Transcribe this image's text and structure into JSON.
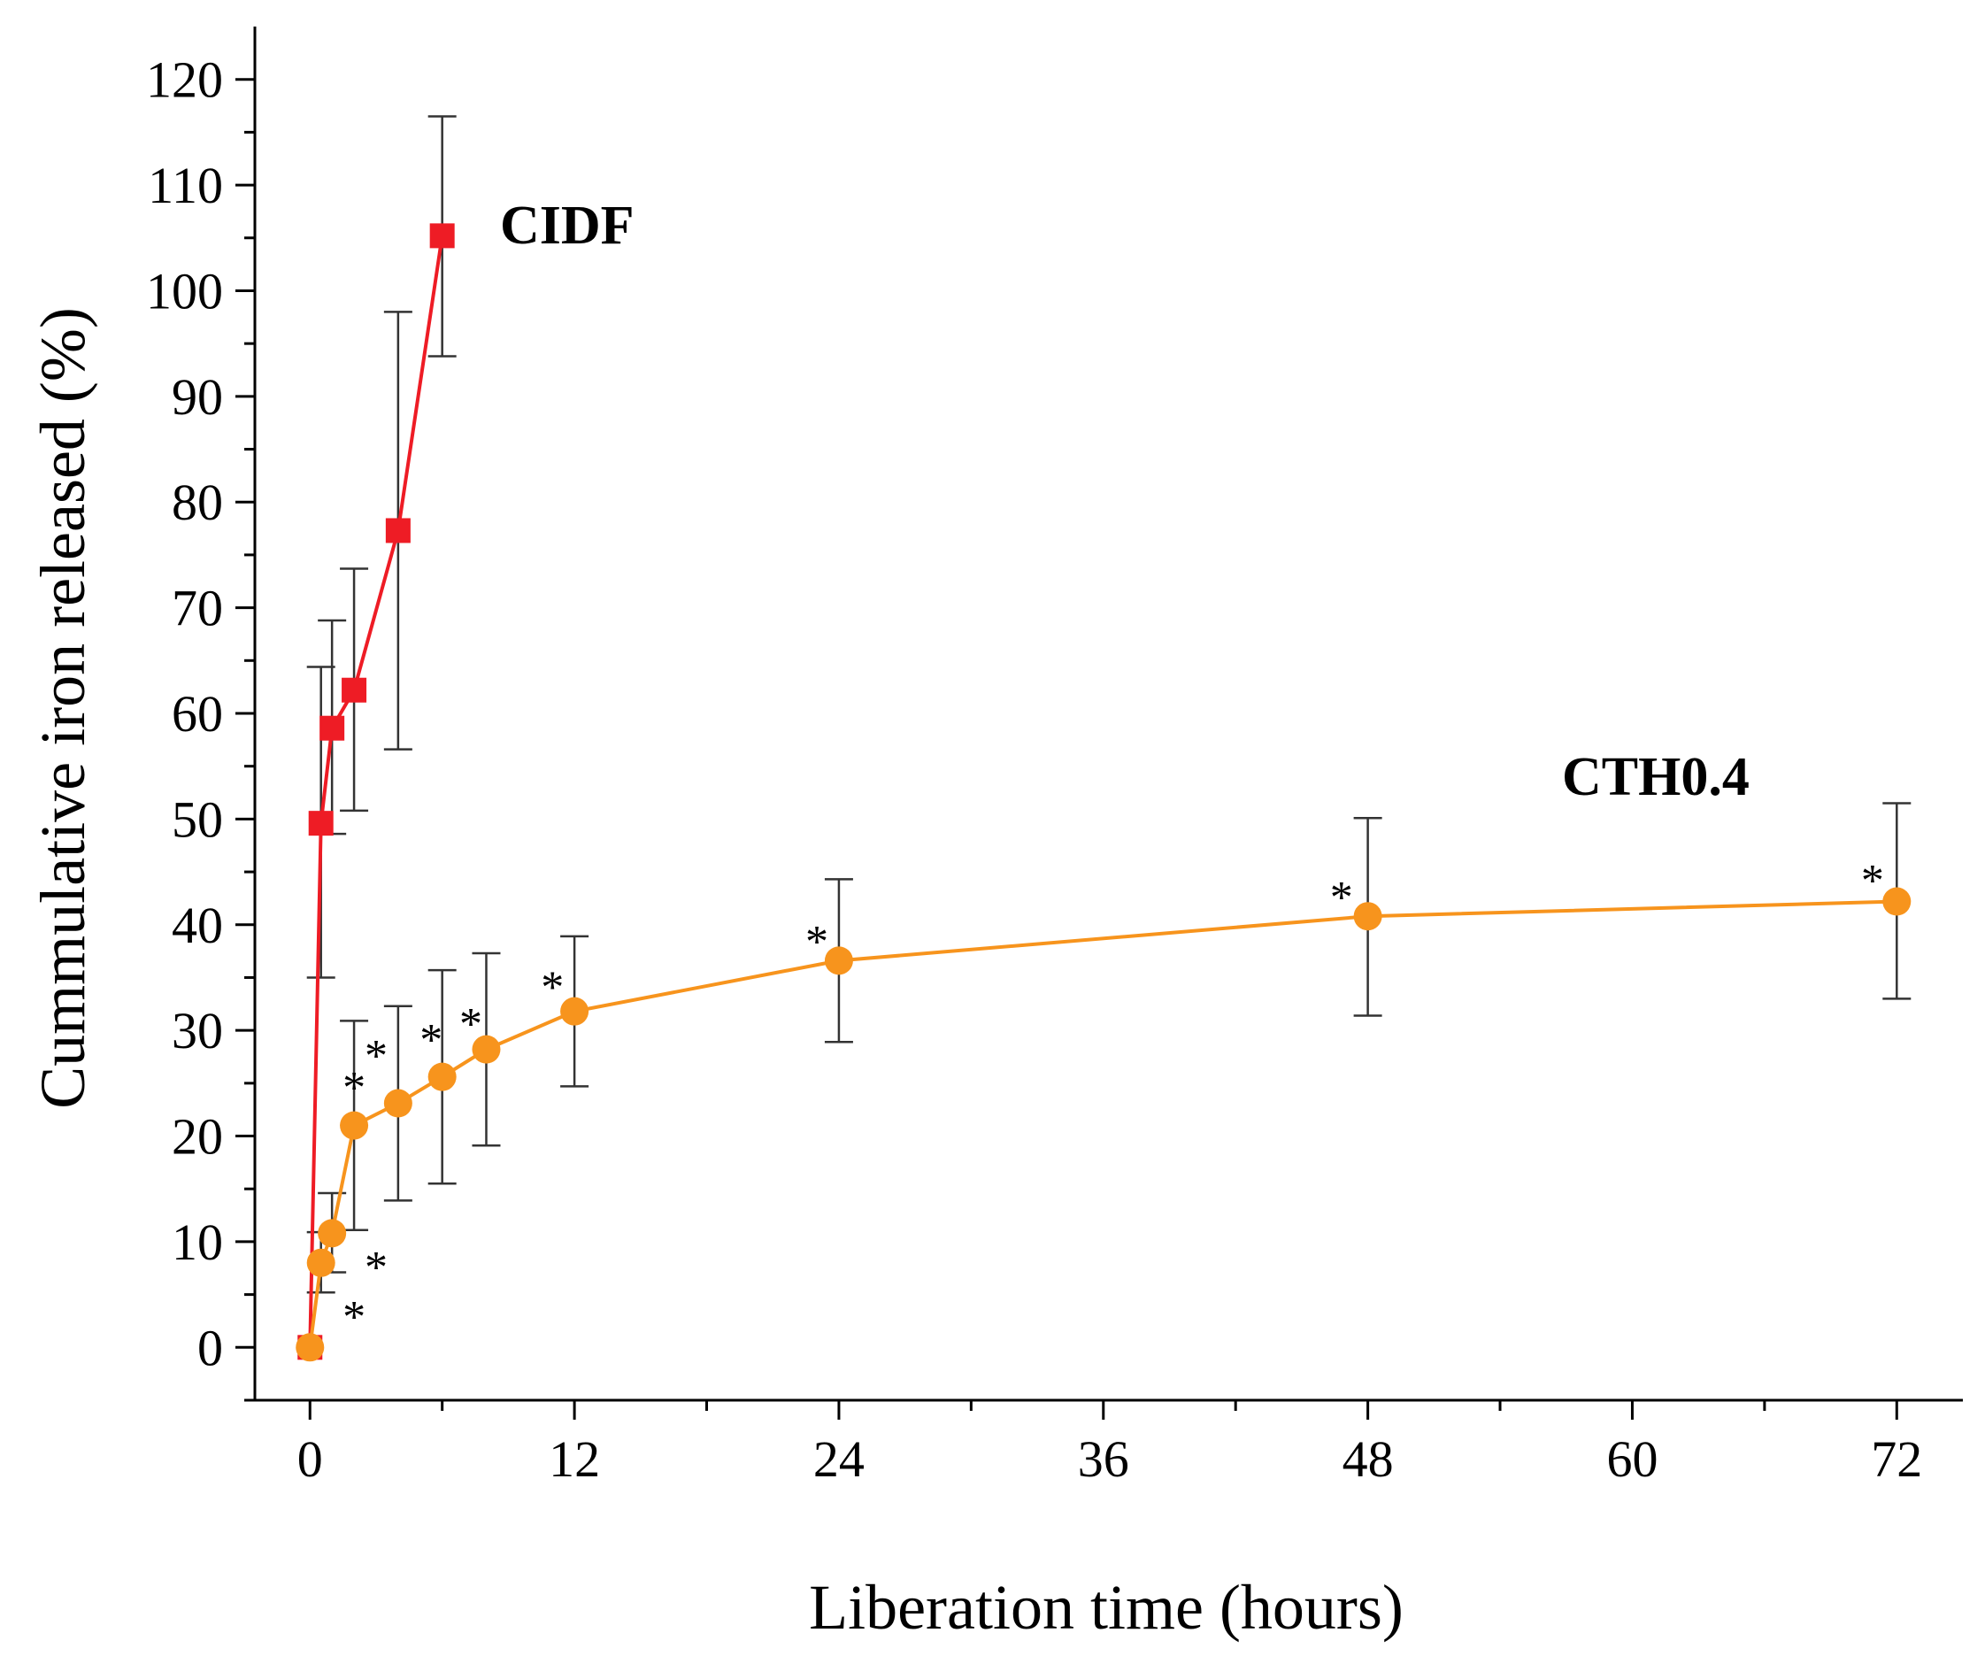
{
  "chart_data": {
    "type": "line",
    "title": "",
    "xlabel": "Liberation time (hours)",
    "ylabel": "Cummulative iron released (%)",
    "xlim": [
      -2.5,
      75
    ],
    "ylim": [
      -5,
      125
    ],
    "xticks": [
      0,
      12,
      24,
      36,
      48,
      60,
      72
    ],
    "xtick_labels": [
      "0",
      "12",
      "24",
      "36",
      "48",
      "60",
      "72"
    ],
    "xminor_ticks": [
      6,
      18,
      30,
      42,
      54,
      66
    ],
    "yticks": [
      0,
      10,
      20,
      30,
      40,
      50,
      60,
      70,
      80,
      90,
      100,
      110,
      120
    ],
    "ytick_labels": [
      "0",
      "10",
      "20",
      "30",
      "40",
      "50",
      "60",
      "70",
      "80",
      "90",
      "100",
      "110",
      "120"
    ],
    "yminor_ticks": [
      -5,
      5,
      15,
      25,
      35,
      45,
      55,
      65,
      75,
      85,
      95,
      105,
      115
    ],
    "grid": false,
    "series": [
      {
        "name": "CIDF",
        "marker": "square",
        "color": "#ee1c25",
        "x": [
          0,
          0.5,
          1,
          2,
          4,
          6
        ],
        "y": [
          0,
          49.6,
          58.6,
          62.2,
          77.3,
          105.2
        ],
        "err_low": [
          0,
          35,
          48.6,
          50.8,
          56.6,
          93.8
        ],
        "err_high": [
          0,
          64.4,
          68.8,
          73.7,
          98,
          116.5
        ],
        "label": "CIDF"
      },
      {
        "name": "CTH0.4",
        "marker": "circle",
        "color": "#f7941d",
        "x": [
          0,
          0.5,
          1,
          2,
          4,
          6,
          8,
          12,
          24,
          48,
          72
        ],
        "y": [
          0,
          8,
          10.8,
          21,
          23.1,
          25.6,
          28.2,
          31.8,
          36.6,
          40.8,
          42.2
        ],
        "err_low": [
          0,
          5.2,
          7.1,
          11.1,
          13.9,
          15.5,
          19.1,
          24.7,
          28.9,
          31.4,
          33
        ],
        "err_high": [
          0,
          10.9,
          14.6,
          30.9,
          32.3,
          35.7,
          37.3,
          38.9,
          44.3,
          50.1,
          51.5
        ],
        "label": "CTH0.4"
      }
    ],
    "annotations": [
      {
        "text": "*",
        "x": 2,
        "y": 25
      },
      {
        "text": "*",
        "x": 3,
        "y": 28
      },
      {
        "text": "*",
        "x": 5.5,
        "y": 29.5
      },
      {
        "text": "*",
        "x": 7.3,
        "y": 31
      },
      {
        "text": "*",
        "x": 11,
        "y": 34.5
      },
      {
        "text": "*",
        "x": 23,
        "y": 38.8
      },
      {
        "text": "*",
        "x": 46.8,
        "y": 43
      },
      {
        "text": "*",
        "x": 70.9,
        "y": 44.6
      },
      {
        "text": "*",
        "x": 3,
        "y": 8
      },
      {
        "text": "*",
        "x": 2,
        "y": 3.3
      }
    ]
  }
}
